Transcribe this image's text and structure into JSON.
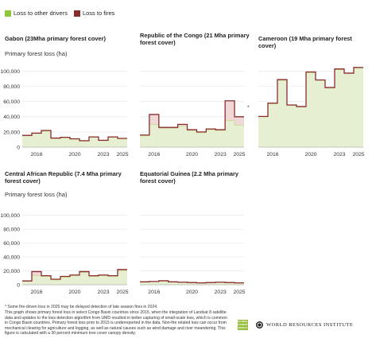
{
  "legend": {
    "items": [
      {
        "label": "Loss to other drivers",
        "color": "#8dc63f"
      },
      {
        "label": "Loss to fires",
        "color": "#8b2c2c"
      }
    ]
  },
  "colors": {
    "other_fill": "#e6efd2",
    "other_line": "#c8d98f",
    "fire_fill": "#f0d8d8",
    "total_line": "#8b2c2c",
    "grid": "#e4e4e4"
  },
  "chart_data": [
    {
      "type": "area",
      "title": "Gabon (23Mha primary forest cover)",
      "ylabel": "Primary forest loss (ha)",
      "x": [
        2015,
        2016,
        2017,
        2018,
        2019,
        2020,
        2021,
        2022,
        2023,
        2024,
        2025
      ],
      "xticks": [
        "2016",
        "2020",
        "2023",
        "2025"
      ],
      "yticks": [
        "0",
        "20,000",
        "40,000",
        "60,000",
        "80,000",
        "100,000"
      ],
      "ylim": [
        0,
        110000
      ],
      "series": [
        {
          "name": "Loss to other drivers",
          "values": [
            15000,
            18000,
            21000,
            11500,
            12500,
            10500,
            8000,
            13000,
            8500,
            13000,
            11000
          ]
        },
        {
          "name": "Loss to fires",
          "values": [
            500,
            500,
            1000,
            500,
            500,
            500,
            500,
            500,
            500,
            500,
            500
          ]
        }
      ]
    },
    {
      "type": "area",
      "title": "Republic of the Congo (21 Mha primary forest cover)",
      "ylabel": "",
      "x": [
        2015,
        2016,
        2017,
        2018,
        2019,
        2020,
        2021,
        2022,
        2023,
        2024,
        2025
      ],
      "xticks": [
        "2016",
        "2020",
        "2023",
        "2025"
      ],
      "yticks": [],
      "ylim": [
        0,
        110000
      ],
      "annotation": "*",
      "series": [
        {
          "name": "Loss to other drivers",
          "values": [
            15000,
            30000,
            25000,
            25000,
            28000,
            22000,
            19000,
            23000,
            22000,
            35000,
            29000
          ]
        },
        {
          "name": "Loss to fires",
          "values": [
            1000,
            13000,
            1000,
            1000,
            2000,
            1000,
            1000,
            1000,
            1000,
            26000,
            11000
          ]
        }
      ]
    },
    {
      "type": "area",
      "title": "Cameroon (19 Mha primary forest cover)",
      "ylabel": "",
      "x": [
        2015,
        2016,
        2017,
        2018,
        2019,
        2020,
        2021,
        2022,
        2023,
        2024,
        2025
      ],
      "xticks": [
        "2016",
        "2020",
        "2023",
        "2025"
      ],
      "yticks": [],
      "ylim": [
        0,
        110000
      ],
      "series": [
        {
          "name": "Loss to other drivers",
          "values": [
            40000,
            57000,
            88000,
            55000,
            53000,
            98000,
            88000,
            78000,
            102000,
            97000,
            104000
          ]
        },
        {
          "name": "Loss to fires",
          "values": [
            500,
            1000,
            1000,
            500,
            500,
            1000,
            500,
            500,
            1000,
            500,
            1000
          ]
        }
      ]
    },
    {
      "type": "area",
      "title": "Central African Republic (7.4 Mha primary forest cover)",
      "ylabel": "Primary forest loss (ha)",
      "x": [
        2015,
        2016,
        2017,
        2018,
        2019,
        2020,
        2021,
        2022,
        2023,
        2024,
        2025
      ],
      "xticks": [
        "2016",
        "2020",
        "2023",
        "2025"
      ],
      "yticks": [
        "0",
        "20,000",
        "40,000",
        "60,000",
        "80,000",
        "100,000"
      ],
      "ylim": [
        0,
        110000
      ],
      "series": [
        {
          "name": "Loss to other drivers",
          "values": [
            5000,
            13000,
            12000,
            7000,
            11000,
            13000,
            18000,
            12000,
            13000,
            12000,
            20000
          ]
        },
        {
          "name": "Loss to fires",
          "values": [
            500,
            6000,
            1000,
            1000,
            1000,
            1000,
            1000,
            1000,
            1000,
            1000,
            2000
          ]
        }
      ]
    },
    {
      "type": "area",
      "title": "Equatorial Guinea (2.2 Mha primary forest cover)",
      "ylabel": "",
      "x": [
        2015,
        2016,
        2017,
        2018,
        2019,
        2020,
        2021,
        2022,
        2023,
        2024,
        2025
      ],
      "xticks": [
        "2016",
        "2020",
        "2023",
        "2025"
      ],
      "yticks": [],
      "ylim": [
        0,
        110000
      ],
      "series": [
        {
          "name": "Loss to other drivers",
          "values": [
            4000,
            4500,
            5500,
            4000,
            3500,
            3000,
            2500,
            3000,
            3500,
            3000,
            2500
          ]
        },
        {
          "name": "Loss to fires",
          "values": [
            200,
            200,
            300,
            200,
            200,
            200,
            200,
            200,
            200,
            200,
            200
          ]
        }
      ]
    }
  ],
  "footnote": {
    "line1": "* Some fire-driven loss in 2025 may be delayed detection of late season fires in 2024.",
    "line2": "This graph shows primary forest loss in select Congo Basin countries since 2015, when the integration of Landsat 8 satellite data and updates to the loss detection algorithm from UMD resulted in better capturing of small-scale loss, which is common in Congo Basin countries. Primary forest loss prior to 2015 is underreported in the data. Non-fire related loss can occur from mechanical clearing for agriculture and logging, as well as natural causes such as wind damage and river meandering. This figure is calculated with a 30 percent minimum tree cover canopy density."
  },
  "branding": {
    "gfw_text": "GLOBAL FOREST WATCH",
    "wri_text": "WORLD RESOURCES INSTITUTE"
  }
}
